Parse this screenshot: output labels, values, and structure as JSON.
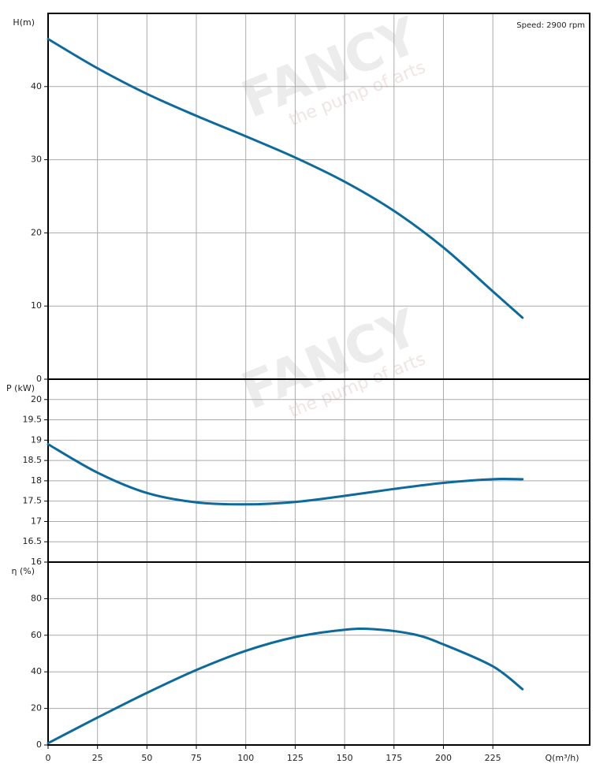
{
  "watermark": [
    "FANCY",
    "the pump of arts"
  ],
  "chart_data": [
    {
      "type": "line",
      "ylabel": "H(m)",
      "annotation": "Speed: 2900 rpm",
      "x": [
        0,
        25,
        50,
        75,
        100,
        125,
        150,
        175,
        200,
        225,
        240
      ],
      "values": [
        46.5,
        42.5,
        39,
        36,
        33.2,
        30.3,
        27,
        23,
        18,
        12,
        8.4
      ],
      "color": "#0e6a9a",
      "ylim": [
        0,
        50
      ],
      "yticks": [
        0,
        10,
        20,
        30,
        40
      ],
      "grid": true
    },
    {
      "type": "line",
      "ylabel": "P (kW)",
      "x": [
        0,
        25,
        50,
        75,
        100,
        125,
        150,
        175,
        200,
        225,
        240
      ],
      "values": [
        18.9,
        18.2,
        17.7,
        17.47,
        17.42,
        17.48,
        17.63,
        17.8,
        17.95,
        18.04,
        18.04
      ],
      "color": "#0e6a9a",
      "ylim": [
        16,
        20.5
      ],
      "yticks": [
        16,
        16.5,
        17,
        17.5,
        18,
        18.5,
        19,
        19.5,
        20
      ],
      "grid": true
    },
    {
      "type": "line",
      "ylabel": "η (%)",
      "xlabel": "Q(m³/h)",
      "x": [
        0,
        25,
        50,
        75,
        100,
        125,
        150,
        165,
        185,
        200,
        225,
        240
      ],
      "values": [
        1,
        15,
        28.5,
        41,
        51.5,
        59,
        63,
        63.3,
        60.5,
        55,
        43,
        30.5
      ],
      "color": "#0e6a9a",
      "ylim": [
        0,
        100
      ],
      "yticks": [
        0,
        20,
        40,
        60,
        80
      ],
      "xlim": [
        0,
        274
      ],
      "xticks": [
        0,
        25,
        50,
        75,
        100,
        125,
        150,
        175,
        200,
        225
      ],
      "grid": true
    }
  ]
}
